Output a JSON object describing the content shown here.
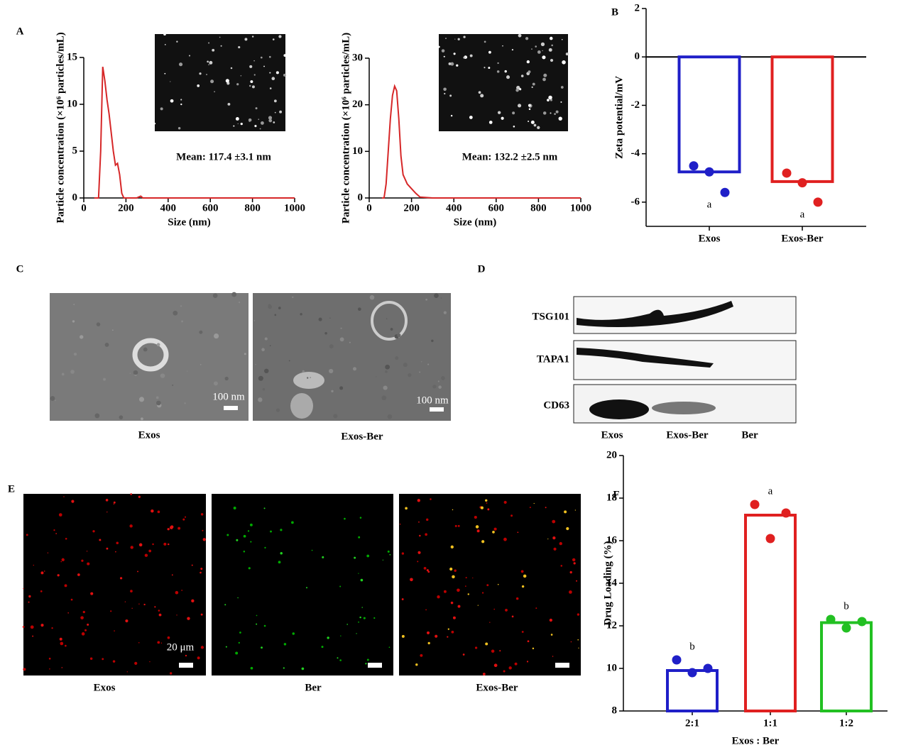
{
  "panel_labels": [
    "A",
    "B",
    "C",
    "D",
    "E",
    "F"
  ],
  "tem": {
    "captions": [
      "Exos",
      "Exos-Ber"
    ],
    "scale_bar": "100 nm"
  },
  "western": {
    "bands": [
      "TSG101",
      "TAPA1",
      "CD63"
    ],
    "lanes": [
      "Exos",
      "Exos-Ber",
      "Ber"
    ]
  },
  "fluorescence": {
    "captions": [
      "Exos",
      "Ber",
      "Exos-Ber"
    ],
    "scale_bar": "20 μm"
  },
  "chart_data": [
    {
      "type": "line",
      "xlabel": "Size (nm)",
      "ylabel": "Particle concentration (×10⁶ particles/mL)",
      "annotation": "Mean: 117.4 ±3.1 nm",
      "color": "#d62728",
      "x": [
        50,
        70,
        80,
        90,
        100,
        110,
        120,
        130,
        140,
        150,
        160,
        170,
        180,
        190,
        200,
        250,
        270,
        280,
        300,
        400,
        600,
        800,
        1000
      ],
      "values": [
        0,
        0,
        5,
        14,
        12.5,
        10.5,
        9,
        7,
        5,
        3.5,
        3.7,
        2.5,
        0.5,
        0,
        0,
        0,
        0.2,
        0,
        0,
        0,
        0,
        0,
        0
      ],
      "xlim": [
        0,
        1000
      ],
      "xticks": [
        0,
        200,
        400,
        600,
        800,
        1000
      ],
      "ylim": [
        0,
        15
      ],
      "yticks": [
        0,
        5,
        10,
        15
      ]
    },
    {
      "type": "line",
      "xlabel": "Size (nm)",
      "ylabel": "Particle concentration (×10⁶ particles/mL)",
      "annotation": "Mean: 132.2 ±2.5 nm",
      "color": "#d62728",
      "x": [
        60,
        70,
        80,
        90,
        100,
        110,
        120,
        130,
        140,
        150,
        160,
        180,
        200,
        220,
        240,
        300,
        400,
        1000
      ],
      "values": [
        0,
        0,
        3,
        10,
        17,
        22,
        24,
        23,
        17,
        9,
        5,
        3,
        2,
        1,
        0.2,
        0,
        0,
        0
      ],
      "xlim": [
        0,
        1000
      ],
      "xticks": [
        0,
        200,
        400,
        600,
        800,
        1000
      ],
      "ylim": [
        0,
        30
      ],
      "yticks": [
        0,
        10,
        20,
        30
      ]
    },
    {
      "type": "bar",
      "ylabel": "Zeta potential/mV",
      "categories": [
        "Exos",
        "Exos-Ber"
      ],
      "values": [
        -4.75,
        -5.15
      ],
      "colors": [
        "#1f1fc8",
        "#e02020"
      ],
      "points": [
        [
          -4.5,
          -4.75,
          -5.6
        ],
        [
          -4.8,
          -5.2,
          -6.0
        ]
      ],
      "letters": [
        "a",
        "a"
      ],
      "ylim": [
        -7,
        2
      ],
      "yticks": [
        -6,
        -4,
        -2,
        0,
        2
      ]
    },
    {
      "type": "bar",
      "ylabel": "Drug Loading (%)",
      "xlabel": "Exos : Ber",
      "categories": [
        "2:1",
        "1:1",
        "1:2"
      ],
      "values": [
        9.9,
        17.2,
        12.15
      ],
      "colors": [
        "#1f1fc8",
        "#e02020",
        "#22c022"
      ],
      "points": [
        [
          10.4,
          9.8,
          10.0
        ],
        [
          17.7,
          16.1,
          17.3
        ],
        [
          12.3,
          11.9,
          12.2
        ]
      ],
      "letters": [
        "b",
        "a",
        "b"
      ],
      "ylim": [
        8,
        20
      ],
      "yticks": [
        8,
        10,
        12,
        14,
        16,
        18,
        20
      ]
    }
  ]
}
